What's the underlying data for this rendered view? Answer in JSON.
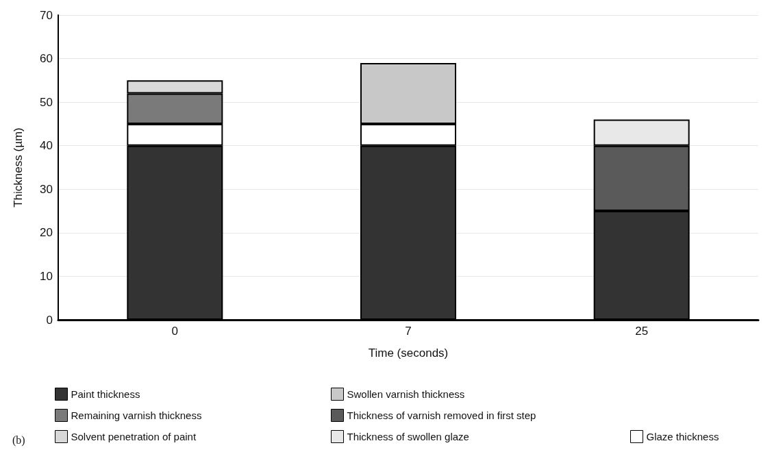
{
  "chart_data": {
    "type": "bar",
    "stacked": true,
    "xlabel": "Time (seconds)",
    "ylabel": "Thickness (µm)",
    "categories": [
      "0",
      "7",
      "25"
    ],
    "series": [
      {
        "name": "Paint thickness",
        "color": "#333333",
        "values": [
          40,
          40,
          25
        ]
      },
      {
        "name": "Glaze thickness",
        "color": "#ffffff",
        "values": [
          5,
          5,
          null
        ]
      },
      {
        "name": "Remaining varnish thickness",
        "color": "#7a7a7a",
        "values": [
          7,
          null,
          null
        ]
      },
      {
        "name": "Solvent penetration of paint",
        "color": "#d8d8d8",
        "values": [
          3,
          null,
          null
        ]
      },
      {
        "name": "Swollen varnish thickness",
        "color": "#c8c8c8",
        "values": [
          null,
          14,
          null
        ]
      },
      {
        "name": "Thickness of varnish removed in first step",
        "color": "#5a5a5a",
        "values": [
          null,
          null,
          15
        ]
      },
      {
        "name": "Thickness of swollen glaze",
        "color": "#e8e8e8",
        "values": [
          null,
          null,
          6
        ]
      }
    ],
    "ylim": [
      0,
      70
    ],
    "yticks": [
      0,
      10,
      20,
      30,
      40,
      50,
      60,
      70
    ],
    "grid": "y",
    "legend": "bottom",
    "annotations": [
      "(b)"
    ]
  }
}
